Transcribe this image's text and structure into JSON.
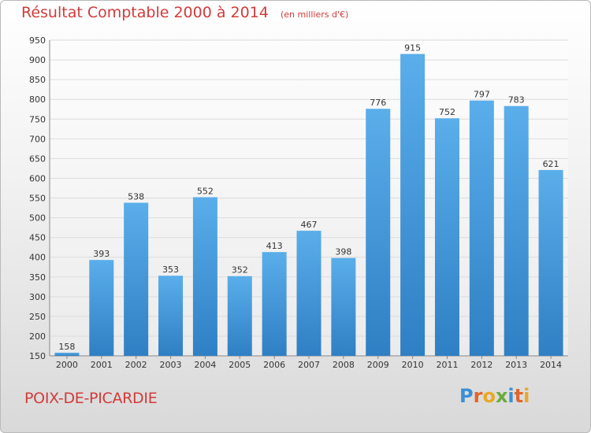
{
  "chart_data": {
    "type": "bar",
    "title": "Résultat Comptable 2000 à 2014",
    "subtitle": "(en milliers d'€)",
    "categories": [
      "2000",
      "2001",
      "2002",
      "2003",
      "2004",
      "2005",
      "2006",
      "2007",
      "2008",
      "2009",
      "2010",
      "2011",
      "2012",
      "2013",
      "2014"
    ],
    "values": [
      158,
      393,
      538,
      353,
      552,
      352,
      413,
      467,
      398,
      776,
      915,
      752,
      797,
      783,
      621
    ],
    "ylim": [
      150,
      950
    ],
    "yticks": [
      150,
      200,
      250,
      300,
      350,
      400,
      450,
      500,
      550,
      600,
      650,
      700,
      750,
      800,
      850,
      900,
      950
    ],
    "xlabel": "",
    "ylabel": "",
    "grid": true,
    "colors": {
      "bar_top": "#5aaeea",
      "bar_bottom": "#2f7fc4",
      "grid": "#dcdcdc",
      "axis_text": "#333333"
    }
  },
  "footer": {
    "town": "POIX-DE-PICARDIE",
    "logo_letters": [
      "P",
      "r",
      "o",
      "x",
      "i",
      "t",
      "i"
    ],
    "logo_colors": [
      "#3a8fd6",
      "#e0662b",
      "#e9a825",
      "#6aac3c",
      "#3a8fd6",
      "#e0662b",
      "#e9a825"
    ]
  }
}
